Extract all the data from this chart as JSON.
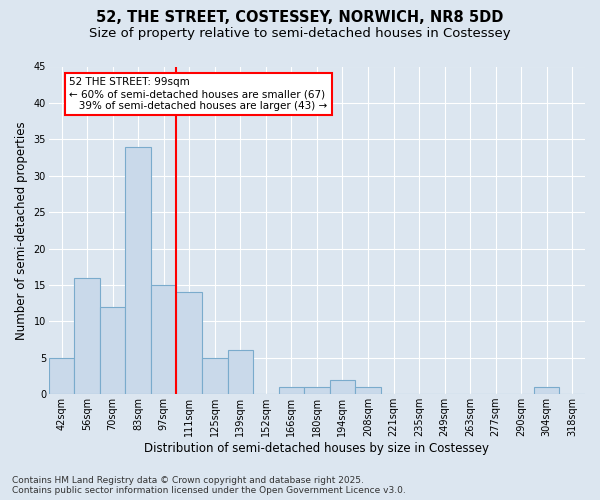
{
  "title_line1": "52, THE STREET, COSTESSEY, NORWICH, NR8 5DD",
  "title_line2": "Size of property relative to semi-detached houses in Costessey",
  "xlabel": "Distribution of semi-detached houses by size in Costessey",
  "ylabel": "Number of semi-detached properties",
  "categories": [
    "42sqm",
    "56sqm",
    "70sqm",
    "83sqm",
    "97sqm",
    "111sqm",
    "125sqm",
    "139sqm",
    "152sqm",
    "166sqm",
    "180sqm",
    "194sqm",
    "208sqm",
    "221sqm",
    "235sqm",
    "249sqm",
    "263sqm",
    "277sqm",
    "290sqm",
    "304sqm",
    "318sqm"
  ],
  "values": [
    5,
    16,
    12,
    34,
    15,
    14,
    5,
    6,
    0,
    1,
    1,
    2,
    1,
    0,
    0,
    0,
    0,
    0,
    0,
    1,
    0
  ],
  "bar_color": "#c9d9ea",
  "bar_edge_color": "#7aabcc",
  "vline_color": "red",
  "vline_index": 4.5,
  "annotation_line1": "52 THE STREET: 99sqm",
  "annotation_line2": "← 60% of semi-detached houses are smaller (67)",
  "annotation_line3": "   39% of semi-detached houses are larger (43) →",
  "annotation_box_color": "white",
  "annotation_box_edge": "red",
  "ylim": [
    0,
    45
  ],
  "yticks": [
    0,
    5,
    10,
    15,
    20,
    25,
    30,
    35,
    40,
    45
  ],
  "background_color": "#dce6f0",
  "footer_text": "Contains HM Land Registry data © Crown copyright and database right 2025.\nContains public sector information licensed under the Open Government Licence v3.0.",
  "title_fontsize": 10.5,
  "subtitle_fontsize": 9.5,
  "axis_label_fontsize": 8.5,
  "tick_fontsize": 7,
  "annotation_fontsize": 7.5,
  "footer_fontsize": 6.5
}
